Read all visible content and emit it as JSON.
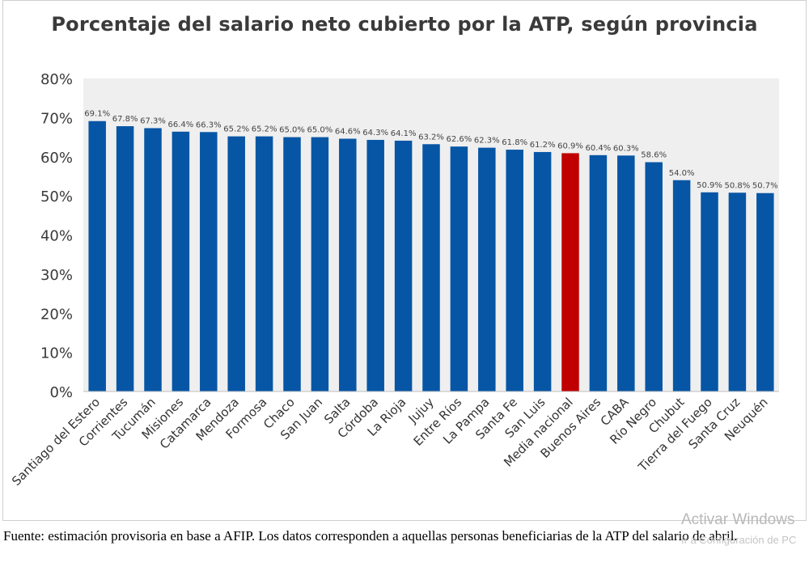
{
  "chart_data": {
    "type": "bar",
    "title": "Porcentaje del salario neto cubierto por la ATP, según provincia",
    "xlabel": "",
    "ylabel": "",
    "ylim": [
      0,
      80
    ],
    "ytick_step": 10,
    "y_tick_labels": [
      "0%",
      "10%",
      "20%",
      "30%",
      "40%",
      "50%",
      "60%",
      "70%",
      "80%"
    ],
    "grid": false,
    "categories": [
      "Santiago del Estero",
      "Corrientes",
      "Tucumán",
      "Misiones",
      "Catamarca",
      "Mendoza",
      "Formosa",
      "Chaco",
      "San Juan",
      "Salta",
      "Córdoba",
      "La Rioja",
      "Jujuy",
      "Entre Ríos",
      "La Pampa",
      "Santa Fe",
      "San Luis",
      "Media nacional",
      "Buenos Aires",
      "CABA",
      "Río Negro",
      "Chubut",
      "Tierra del Fuego",
      "Santa Cruz",
      "Neuquén"
    ],
    "values": [
      69.1,
      67.8,
      67.3,
      66.4,
      66.3,
      65.2,
      65.2,
      65.0,
      65.0,
      64.6,
      64.3,
      64.1,
      63.2,
      62.6,
      62.3,
      61.8,
      61.2,
      60.9,
      60.4,
      60.3,
      58.6,
      54.0,
      50.9,
      50.8,
      50.7
    ],
    "data_labels": [
      "69.1%",
      "67.8%",
      "67.3%",
      "66.4%",
      "66.3%",
      "65.2%",
      "65.2%",
      "65.0%",
      "65.0%",
      "64.6%",
      "64.3%",
      "64.1%",
      "63.2%",
      "62.6%",
      "62.3%",
      "61.8%",
      "61.2%",
      "60.9%",
      "60.4%",
      "60.3%",
      "58.6%",
      "54.0%",
      "50.9%",
      "50.8%",
      "50.7%"
    ],
    "highlight_category": "Media nacional"
  },
  "colors": {
    "bar": "#0756a6",
    "highlight_bar": "#c00000",
    "plot_background": "#efefef",
    "axis_line": "#bfbfbf"
  },
  "footnote": "Fuente: estimación provisoria en base a AFIP. Los datos corresponden a aquellas personas beneficiarias de la ATP del salario de abril.",
  "watermark": {
    "line1": "Activar Windows",
    "line2": "Ir a Configuración de PC"
  }
}
